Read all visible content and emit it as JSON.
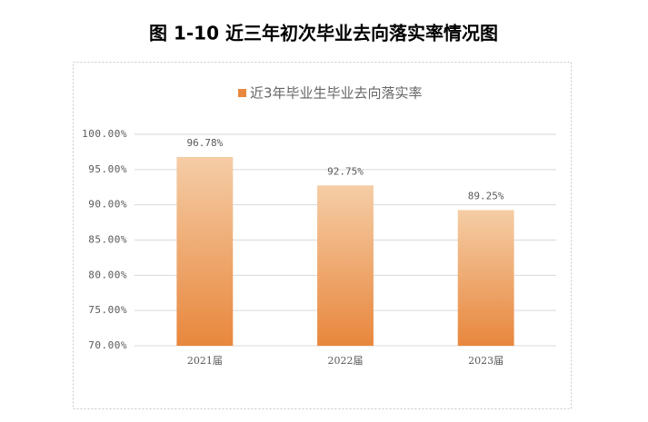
{
  "chart_data": {
    "type": "bar",
    "title": "图 1-10 近三年初次毕业去向落实率情况图",
    "series": [
      {
        "name": "近3年毕业生毕业去向落实率",
        "color": "#e8873d",
        "values": [
          96.78,
          92.75,
          89.25
        ],
        "value_labels": [
          "96.78%",
          "92.75%",
          "89.25%"
        ]
      }
    ],
    "categories": [
      "2021届",
      "2022届",
      "2023届"
    ],
    "ylim": [
      70,
      100
    ],
    "yticks": [
      {
        "value": 70,
        "label": "70.00%"
      },
      {
        "value": 75,
        "label": "75.00%"
      },
      {
        "value": 80,
        "label": "80.00%"
      },
      {
        "value": 85,
        "label": "85.00%"
      },
      {
        "value": 90,
        "label": "90.00%"
      },
      {
        "value": 95,
        "label": "95.00%"
      },
      {
        "value": 100,
        "label": "100.00%"
      }
    ],
    "grid": true
  }
}
